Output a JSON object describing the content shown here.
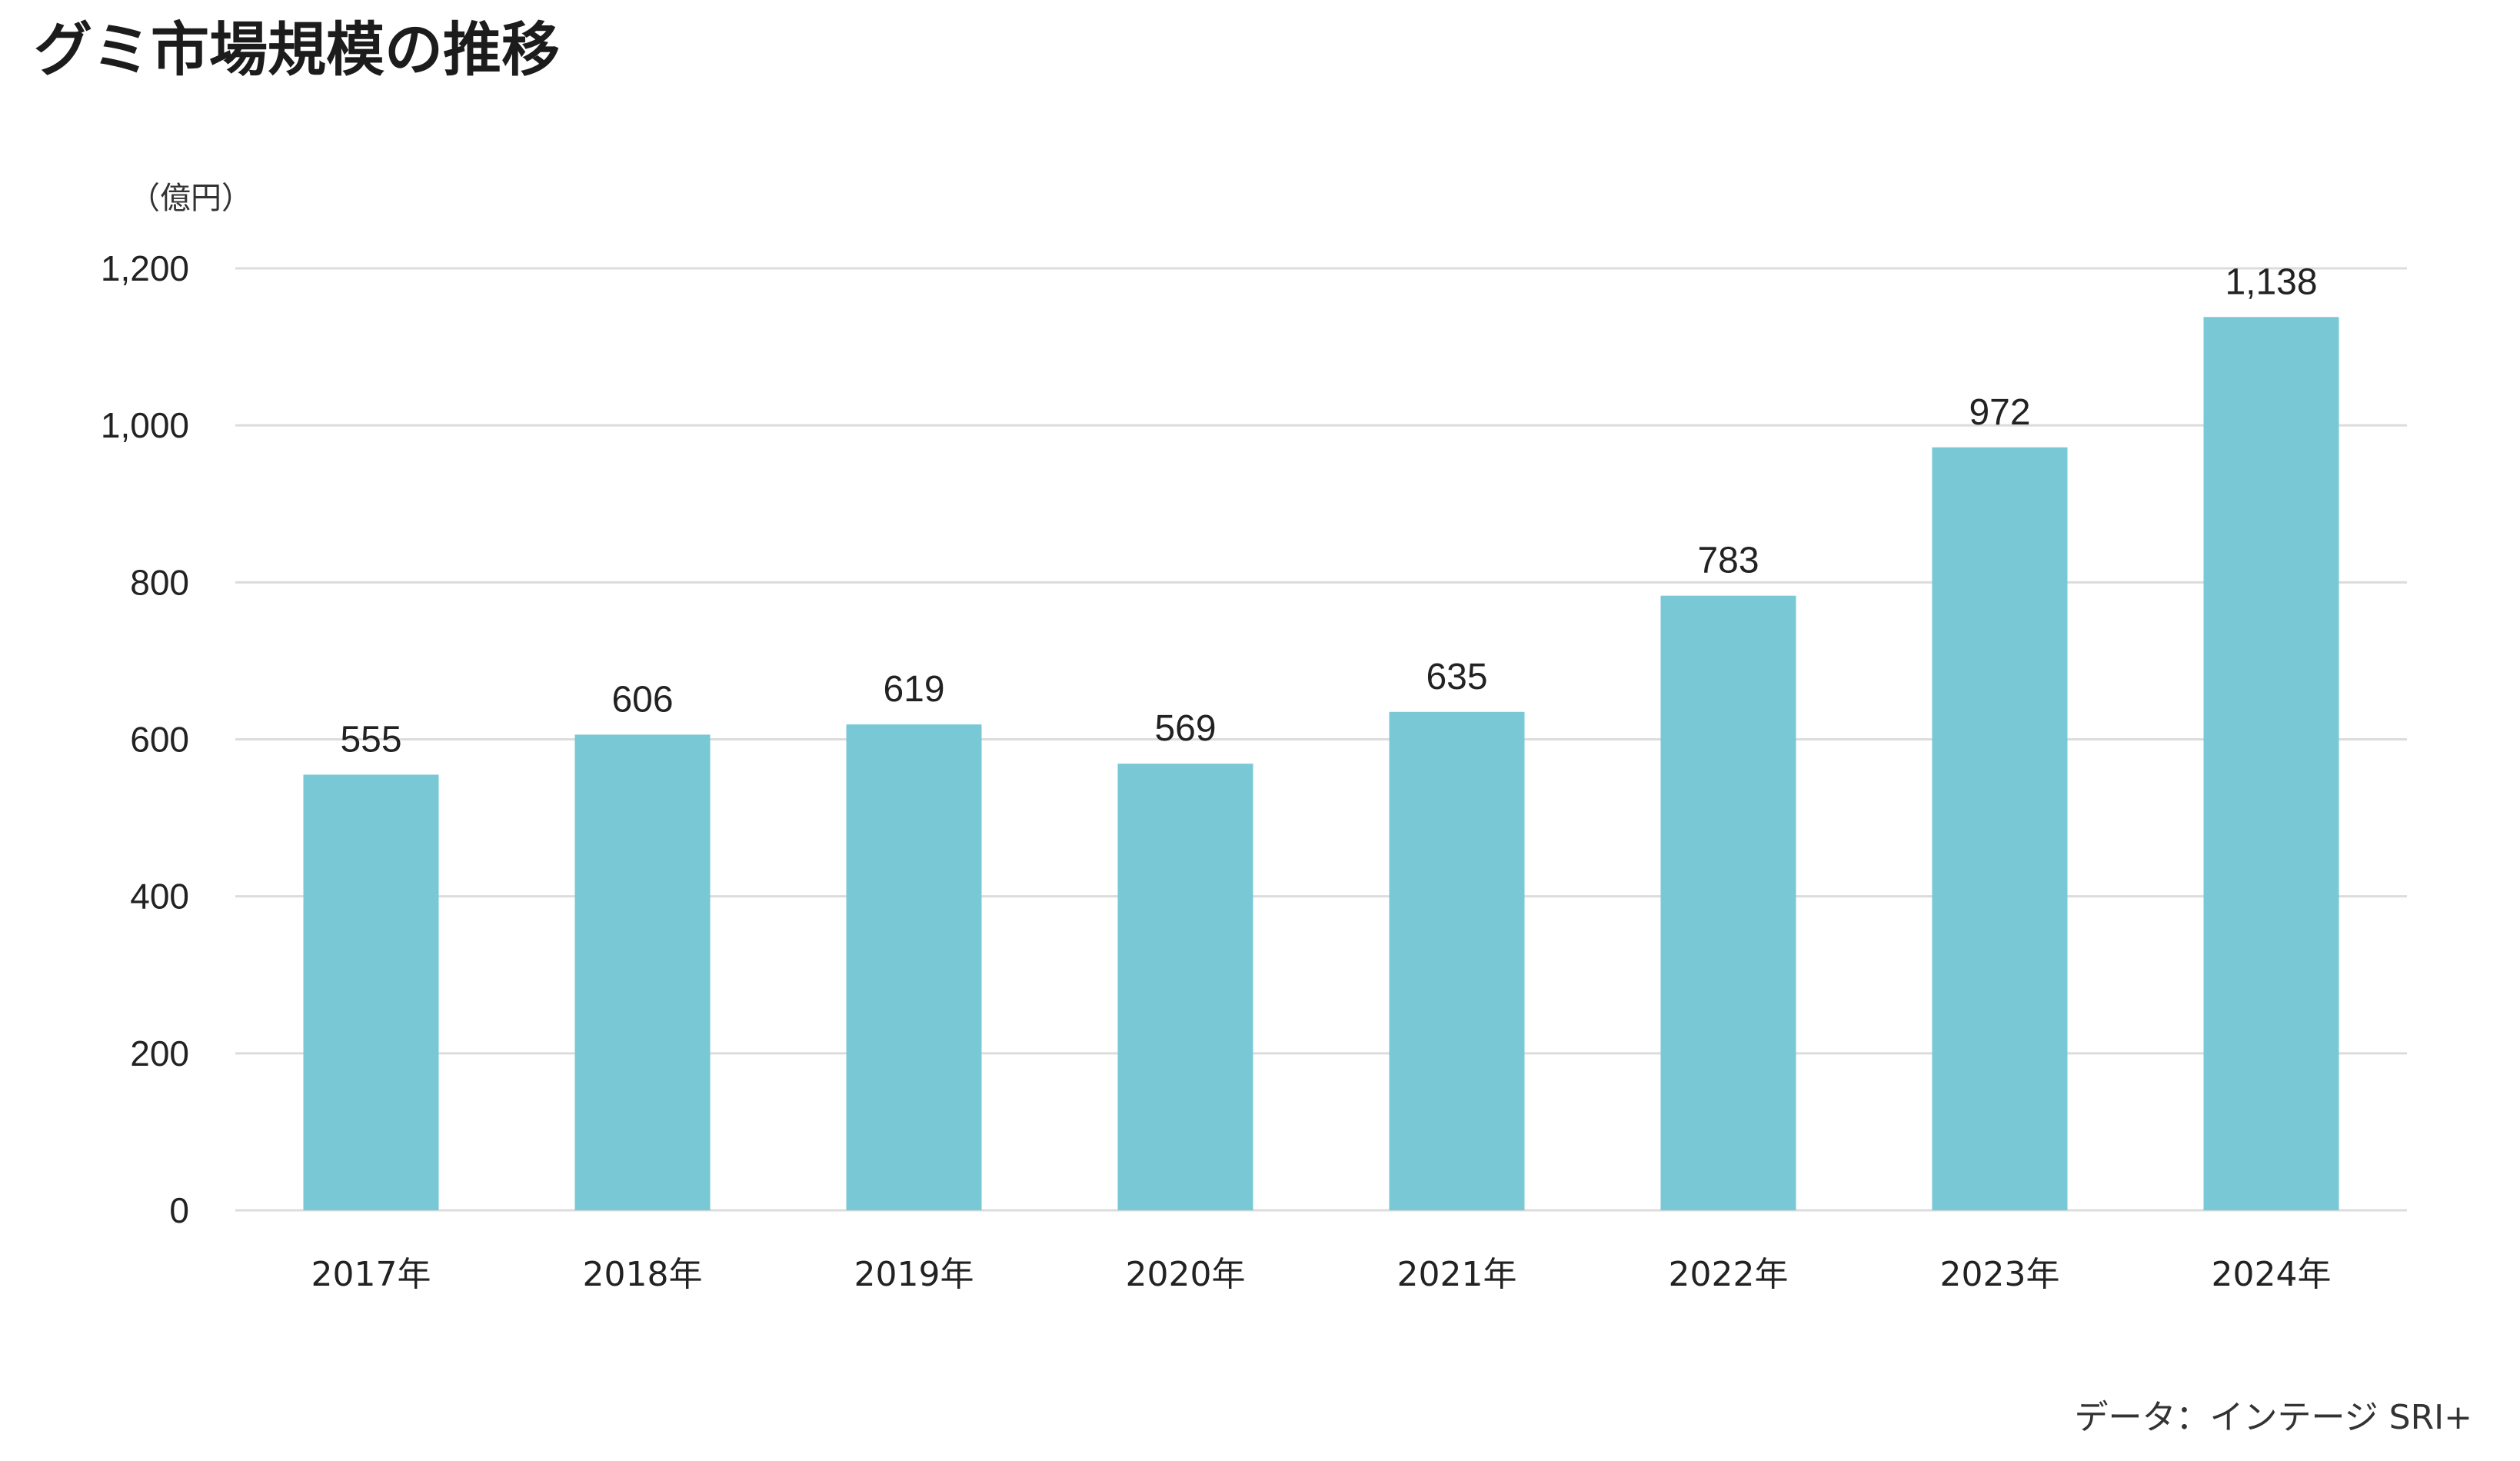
{
  "title": "グミ市場規模の推移",
  "unit_label": "（億円）",
  "source": "データ：インテージ SRI+",
  "colors": {
    "bar": "#79c8d5",
    "grid": "#dcdcdc",
    "text": "#222222"
  },
  "chart_data": {
    "type": "bar",
    "title": "グミ市場規模の推移",
    "xlabel": "",
    "ylabel": "（億円）",
    "categories": [
      "2017年",
      "2018年",
      "2019年",
      "2020年",
      "2021年",
      "2022年",
      "2023年",
      "2024年"
    ],
    "values": [
      555,
      606,
      619,
      569,
      635,
      783,
      972,
      1138
    ],
    "value_labels": [
      "555",
      "606",
      "619",
      "569",
      "635",
      "783",
      "972",
      "1,138"
    ],
    "yticks": [
      0,
      200,
      400,
      600,
      800,
      1000,
      1200
    ],
    "ytick_labels": [
      "0",
      "200",
      "400",
      "600",
      "800",
      "1,000",
      "1,200"
    ],
    "ylim": [
      0,
      1200
    ],
    "grid": true,
    "legend": "none"
  }
}
